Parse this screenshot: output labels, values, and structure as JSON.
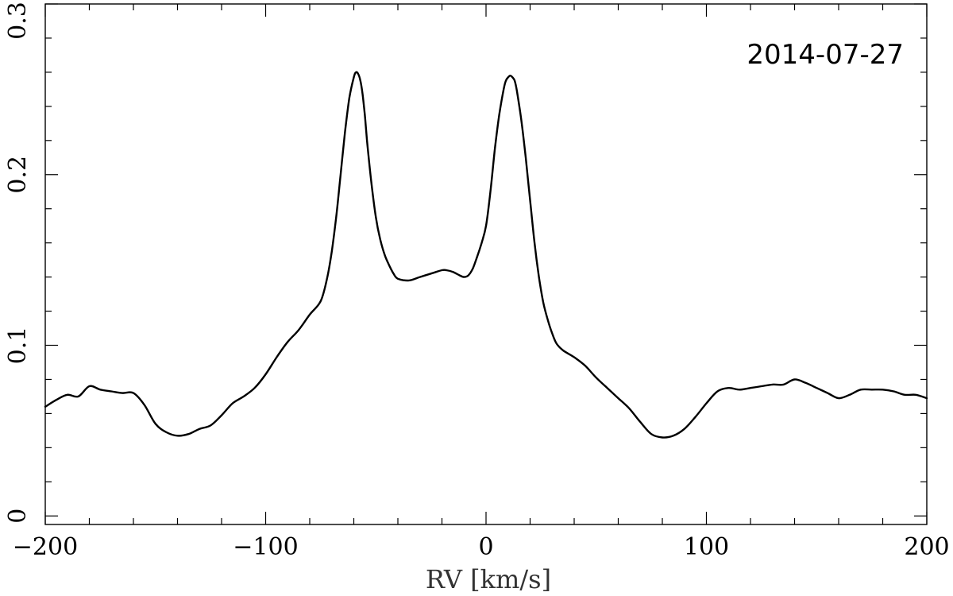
{
  "chart_data": {
    "type": "line",
    "title": "",
    "annotation": "2014-07-27",
    "xlabel": "RV [km/s]",
    "ylabel": "",
    "xlim": [
      -200,
      200
    ],
    "ylim": [
      -0.005,
      0.3
    ],
    "xticks": [
      -200,
      -100,
      0,
      100,
      200
    ],
    "xtick_labels": [
      "−200",
      "−100",
      "0",
      "100",
      "200"
    ],
    "xminor": [
      -180,
      -160,
      -140,
      -120,
      -80,
      -60,
      -40,
      -20,
      20,
      40,
      60,
      80,
      120,
      140,
      160,
      180
    ],
    "yticks": [
      0,
      0.1,
      0.2,
      0.3
    ],
    "ytick_labels": [
      "0",
      "0.1",
      "0.2",
      "0.3"
    ],
    "yminor": [
      0.02,
      0.04,
      0.06,
      0.08,
      0.12,
      0.14,
      0.16,
      0.18,
      0.22,
      0.24,
      0.26,
      0.28
    ],
    "grid": false,
    "series": [
      {
        "x": [
          -200,
          -195,
          -190,
          -185,
          -180,
          -175,
          -170,
          -165,
          -160,
          -155,
          -150,
          -145,
          -140,
          -135,
          -130,
          -125,
          -120,
          -115,
          -110,
          -105,
          -100,
          -95,
          -90,
          -85,
          -80,
          -75,
          -72,
          -70,
          -68,
          -66,
          -64,
          -62,
          -60,
          -59,
          -58,
          -57,
          -56,
          -55,
          -54,
          -52,
          -50,
          -48,
          -46,
          -44,
          -42,
          -40,
          -35,
          -30,
          -25,
          -20,
          -18,
          -15,
          -12,
          -10,
          -8,
          -6,
          -4,
          -2,
          0,
          2,
          4,
          6,
          8,
          9,
          10,
          11,
          12,
          13,
          14,
          16,
          18,
          20,
          22,
          24,
          26,
          28,
          30,
          32,
          35,
          40,
          45,
          50,
          55,
          60,
          65,
          70,
          75,
          80,
          85,
          90,
          95,
          100,
          105,
          110,
          115,
          120,
          125,
          130,
          135,
          140,
          145,
          150,
          155,
          160,
          165,
          170,
          175,
          180,
          185,
          190,
          195,
          200
        ],
        "values": [
          0.064,
          0.068,
          0.071,
          0.07,
          0.076,
          0.074,
          0.073,
          0.072,
          0.072,
          0.065,
          0.054,
          0.049,
          0.047,
          0.048,
          0.051,
          0.053,
          0.059,
          0.066,
          0.07,
          0.075,
          0.083,
          0.093,
          0.102,
          0.109,
          0.118,
          0.126,
          0.14,
          0.155,
          0.175,
          0.2,
          0.225,
          0.245,
          0.257,
          0.26,
          0.259,
          0.255,
          0.247,
          0.235,
          0.22,
          0.195,
          0.175,
          0.162,
          0.153,
          0.147,
          0.142,
          0.139,
          0.138,
          0.14,
          0.142,
          0.144,
          0.144,
          0.143,
          0.141,
          0.14,
          0.141,
          0.145,
          0.152,
          0.16,
          0.17,
          0.19,
          0.215,
          0.235,
          0.25,
          0.255,
          0.257,
          0.258,
          0.257,
          0.255,
          0.249,
          0.232,
          0.21,
          0.185,
          0.16,
          0.14,
          0.125,
          0.115,
          0.107,
          0.101,
          0.097,
          0.093,
          0.088,
          0.081,
          0.075,
          0.069,
          0.063,
          0.055,
          0.048,
          0.046,
          0.047,
          0.051,
          0.058,
          0.066,
          0.073,
          0.075,
          0.074,
          0.075,
          0.076,
          0.077,
          0.077,
          0.08,
          0.078,
          0.075,
          0.072,
          0.069,
          0.071,
          0.074,
          0.074,
          0.074,
          0.073,
          0.071,
          0.071,
          0.069
        ]
      }
    ]
  }
}
